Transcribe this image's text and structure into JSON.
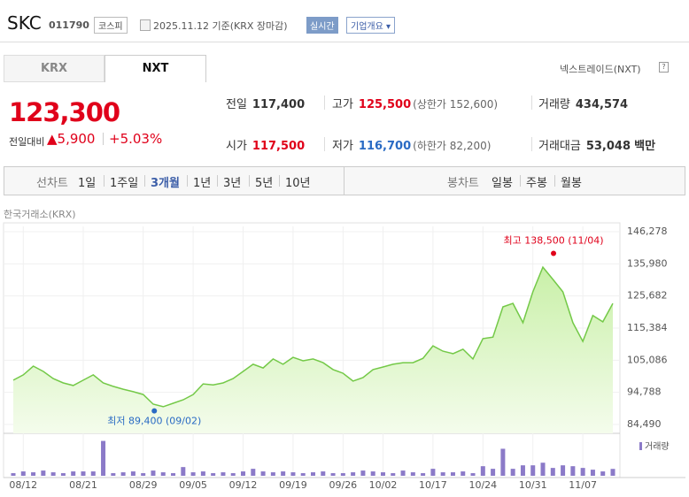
{
  "header": {
    "name": "SKC",
    "code": "011790",
    "market": "코스피",
    "date": "2025.11.12 기준(KRX 장마감)",
    "realtime": "실시간",
    "company": "기업개요"
  },
  "tabs": [
    "KRX",
    "NXT"
  ],
  "nxt_link": "넥스트레이드(NXT)",
  "price": {
    "current": "123,300",
    "change_label": "전일대비",
    "change": "▲5,900",
    "rate": "+5.03%"
  },
  "stats": [
    {
      "label": "전일",
      "value": "117,400"
    },
    {
      "label": "고가",
      "value": "125,500",
      "note": "(상한가 152,600)"
    },
    {
      "label": "거래량",
      "value": "434,574"
    },
    {
      "label": "시가",
      "value": "117,500"
    },
    {
      "label": "저가",
      "value": "116,700",
      "note": "(하한가 82,200)"
    },
    {
      "label": "거래대금",
      "value": "53,048",
      "unit": "백만"
    }
  ],
  "periods": {
    "label": "선차트",
    "items": [
      "1일",
      "1주일",
      "3개월",
      "1년",
      "3년",
      "5년",
      "10년"
    ]
  },
  "candles": {
    "label": "봉차트",
    "items": [
      "일봉",
      "주봉",
      "월봉"
    ]
  },
  "chart_data": {
    "type": "line",
    "source": "한국거래소(KRX)",
    "categories": [
      null,
      "08/12",
      null,
      null,
      null,
      null,
      null,
      "08/21",
      null,
      null,
      null,
      null,
      null,
      "08/29",
      null,
      null,
      null,
      null,
      "09/05",
      null,
      null,
      null,
      null,
      "09/12",
      null,
      null,
      null,
      null,
      "09/19",
      null,
      null,
      null,
      null,
      "09/26",
      null,
      null,
      null,
      "10/02",
      null,
      null,
      null,
      null,
      "10/17",
      null,
      null,
      null,
      null,
      "10/24",
      null,
      null,
      null,
      null,
      "10/31",
      null,
      null,
      null,
      null,
      "11/07",
      null,
      null,
      null
    ],
    "series": [
      {
        "color": "#74c948",
        "values": [
          98700,
          100400,
          103200,
          101500,
          99200,
          97800,
          97000,
          98700,
          100400,
          97800,
          96700,
          95800,
          95000,
          94100,
          91000,
          90200,
          91300,
          92400,
          94100,
          97500,
          97200,
          97800,
          99200,
          101500,
          103800,
          102600,
          105500,
          103800,
          106000,
          104900,
          105500,
          104300,
          102100,
          100900,
          98400,
          99500,
          102100,
          102900,
          103800,
          104300,
          104300,
          105700,
          109700,
          108000,
          107200,
          108600,
          105500,
          112000,
          112500,
          122200,
          123300,
          117100,
          127000,
          134900,
          131000,
          127000,
          117100,
          111100,
          119400,
          117400,
          123300
        ]
      },
      {
        "name": "거래량",
        "color": "#8b7ac8",
        "axis": "y2",
        "values": [
          165000,
          275000,
          220000,
          330000,
          220000,
          165000,
          275000,
          275000,
          275000,
          2200000,
          165000,
          220000,
          275000,
          165000,
          330000,
          220000,
          165000,
          550000,
          220000,
          275000,
          165000,
          220000,
          165000,
          275000,
          440000,
          275000,
          220000,
          275000,
          220000,
          165000,
          220000,
          275000,
          165000,
          165000,
          220000,
          330000,
          275000,
          220000,
          165000,
          330000,
          220000,
          165000,
          440000,
          220000,
          220000,
          275000,
          165000,
          605000,
          440000,
          1705000,
          440000,
          660000,
          660000,
          825000,
          495000,
          660000,
          605000,
          495000,
          385000,
          275000,
          434574
        ]
      }
    ],
    "ylim": [
      84490,
      146278
    ],
    "yticks": [
      {
        "value": 84490,
        "label": "84,490"
      },
      {
        "value": 94788,
        "label": "94,788"
      },
      {
        "value": 105086,
        "label": "105,086"
      },
      {
        "value": 115384,
        "label": "115,384"
      },
      {
        "value": 125682,
        "label": "125,682"
      },
      {
        "value": 135980,
        "label": "135,980"
      },
      {
        "value": 146278,
        "label": "146,278"
      }
    ],
    "y2lim": [
      0,
      2400000
    ],
    "high": {
      "label": "최고 138,500 (11/04)",
      "value": 138500,
      "color": "#e0001a"
    },
    "low": {
      "label": "최저 89,400 (09/02)",
      "value": 89400,
      "color": "#2a6bc4"
    },
    "grid": true
  }
}
